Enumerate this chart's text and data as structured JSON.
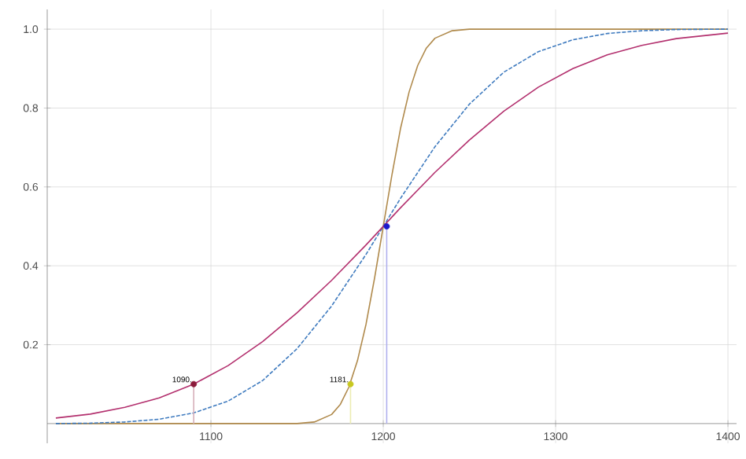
{
  "chart_data": {
    "type": "line",
    "xlim": [
      1005,
      1405
    ],
    "ylim": [
      -0.05,
      1.05
    ],
    "xticks": [
      1100,
      1200,
      1300,
      1400
    ],
    "yticks": [
      {
        "value": 0.2,
        "label": "0.2"
      },
      {
        "value": 0.4,
        "label": "0.4"
      },
      {
        "value": 0.6,
        "label": "0.6"
      },
      {
        "value": 0.8,
        "label": "0.8"
      },
      {
        "value": 1,
        "label": "1.0"
      }
    ],
    "grid": true,
    "marker": "none",
    "series": [
      {
        "color": "#b3306e",
        "line_style": "solid",
        "x": [
          1010,
          1030,
          1050,
          1070,
          1090,
          1110,
          1130,
          1150,
          1170,
          1190,
          1200,
          1210,
          1230,
          1250,
          1270,
          1290,
          1310,
          1330,
          1350,
          1370,
          1400
        ],
        "values": [
          0.014,
          0.024,
          0.041,
          0.065,
          0.1,
          0.147,
          0.208,
          0.281,
          0.363,
          0.453,
          0.5,
          0.547,
          0.637,
          0.719,
          0.792,
          0.853,
          0.9,
          0.935,
          0.959,
          0.976,
          0.99
        ]
      },
      {
        "color": "#3f7bbf",
        "line_style": "dashed",
        "x": [
          1010,
          1030,
          1050,
          1070,
          1090,
          1110,
          1130,
          1150,
          1170,
          1190,
          1200,
          1210,
          1230,
          1250,
          1270,
          1290,
          1310,
          1330,
          1350,
          1370,
          1400
        ],
        "values": [
          0.0,
          0.001,
          0.004,
          0.011,
          0.027,
          0.057,
          0.109,
          0.19,
          0.298,
          0.429,
          0.5,
          0.571,
          0.702,
          0.81,
          0.891,
          0.943,
          0.973,
          0.989,
          0.996,
          0.999,
          1.0
        ]
      },
      {
        "color": "#b08a4c",
        "line_style": "solid",
        "x": [
          1010,
          1140,
          1150,
          1160,
          1170,
          1175,
          1180,
          1185,
          1190,
          1195,
          1200,
          1205,
          1210,
          1215,
          1220,
          1225,
          1230,
          1240,
          1250,
          1400
        ],
        "values": [
          0,
          0,
          0.0,
          0.004,
          0.023,
          0.048,
          0.092,
          0.159,
          0.252,
          0.37,
          0.5,
          0.63,
          0.748,
          0.841,
          0.908,
          0.952,
          0.977,
          0.996,
          1.0,
          1.0
        ]
      },
      {
        "type": "scatter",
        "marker": "circle",
        "color": "#8b1a3a",
        "x": [
          1090
        ],
        "values": [
          0.1
        ],
        "errors": [
          [
            0.1,
            0
          ]
        ]
      },
      {
        "type": "scatter",
        "marker": "circle",
        "color": "#c8c820",
        "x": [
          1181
        ],
        "values": [
          0.1
        ],
        "errors": [
          [
            0.1,
            0
          ]
        ]
      },
      {
        "type": "scatter",
        "marker": "circle",
        "color": "#1a1acc",
        "x": [
          1202
        ],
        "values": [
          0.5
        ],
        "errors": [
          [
            0.5,
            0
          ]
        ]
      }
    ],
    "annotations": [
      {
        "text": "1090.",
        "x": 1090,
        "y": 0.1
      },
      {
        "text": "1181.",
        "x": 1181,
        "y": 0.1
      }
    ]
  }
}
